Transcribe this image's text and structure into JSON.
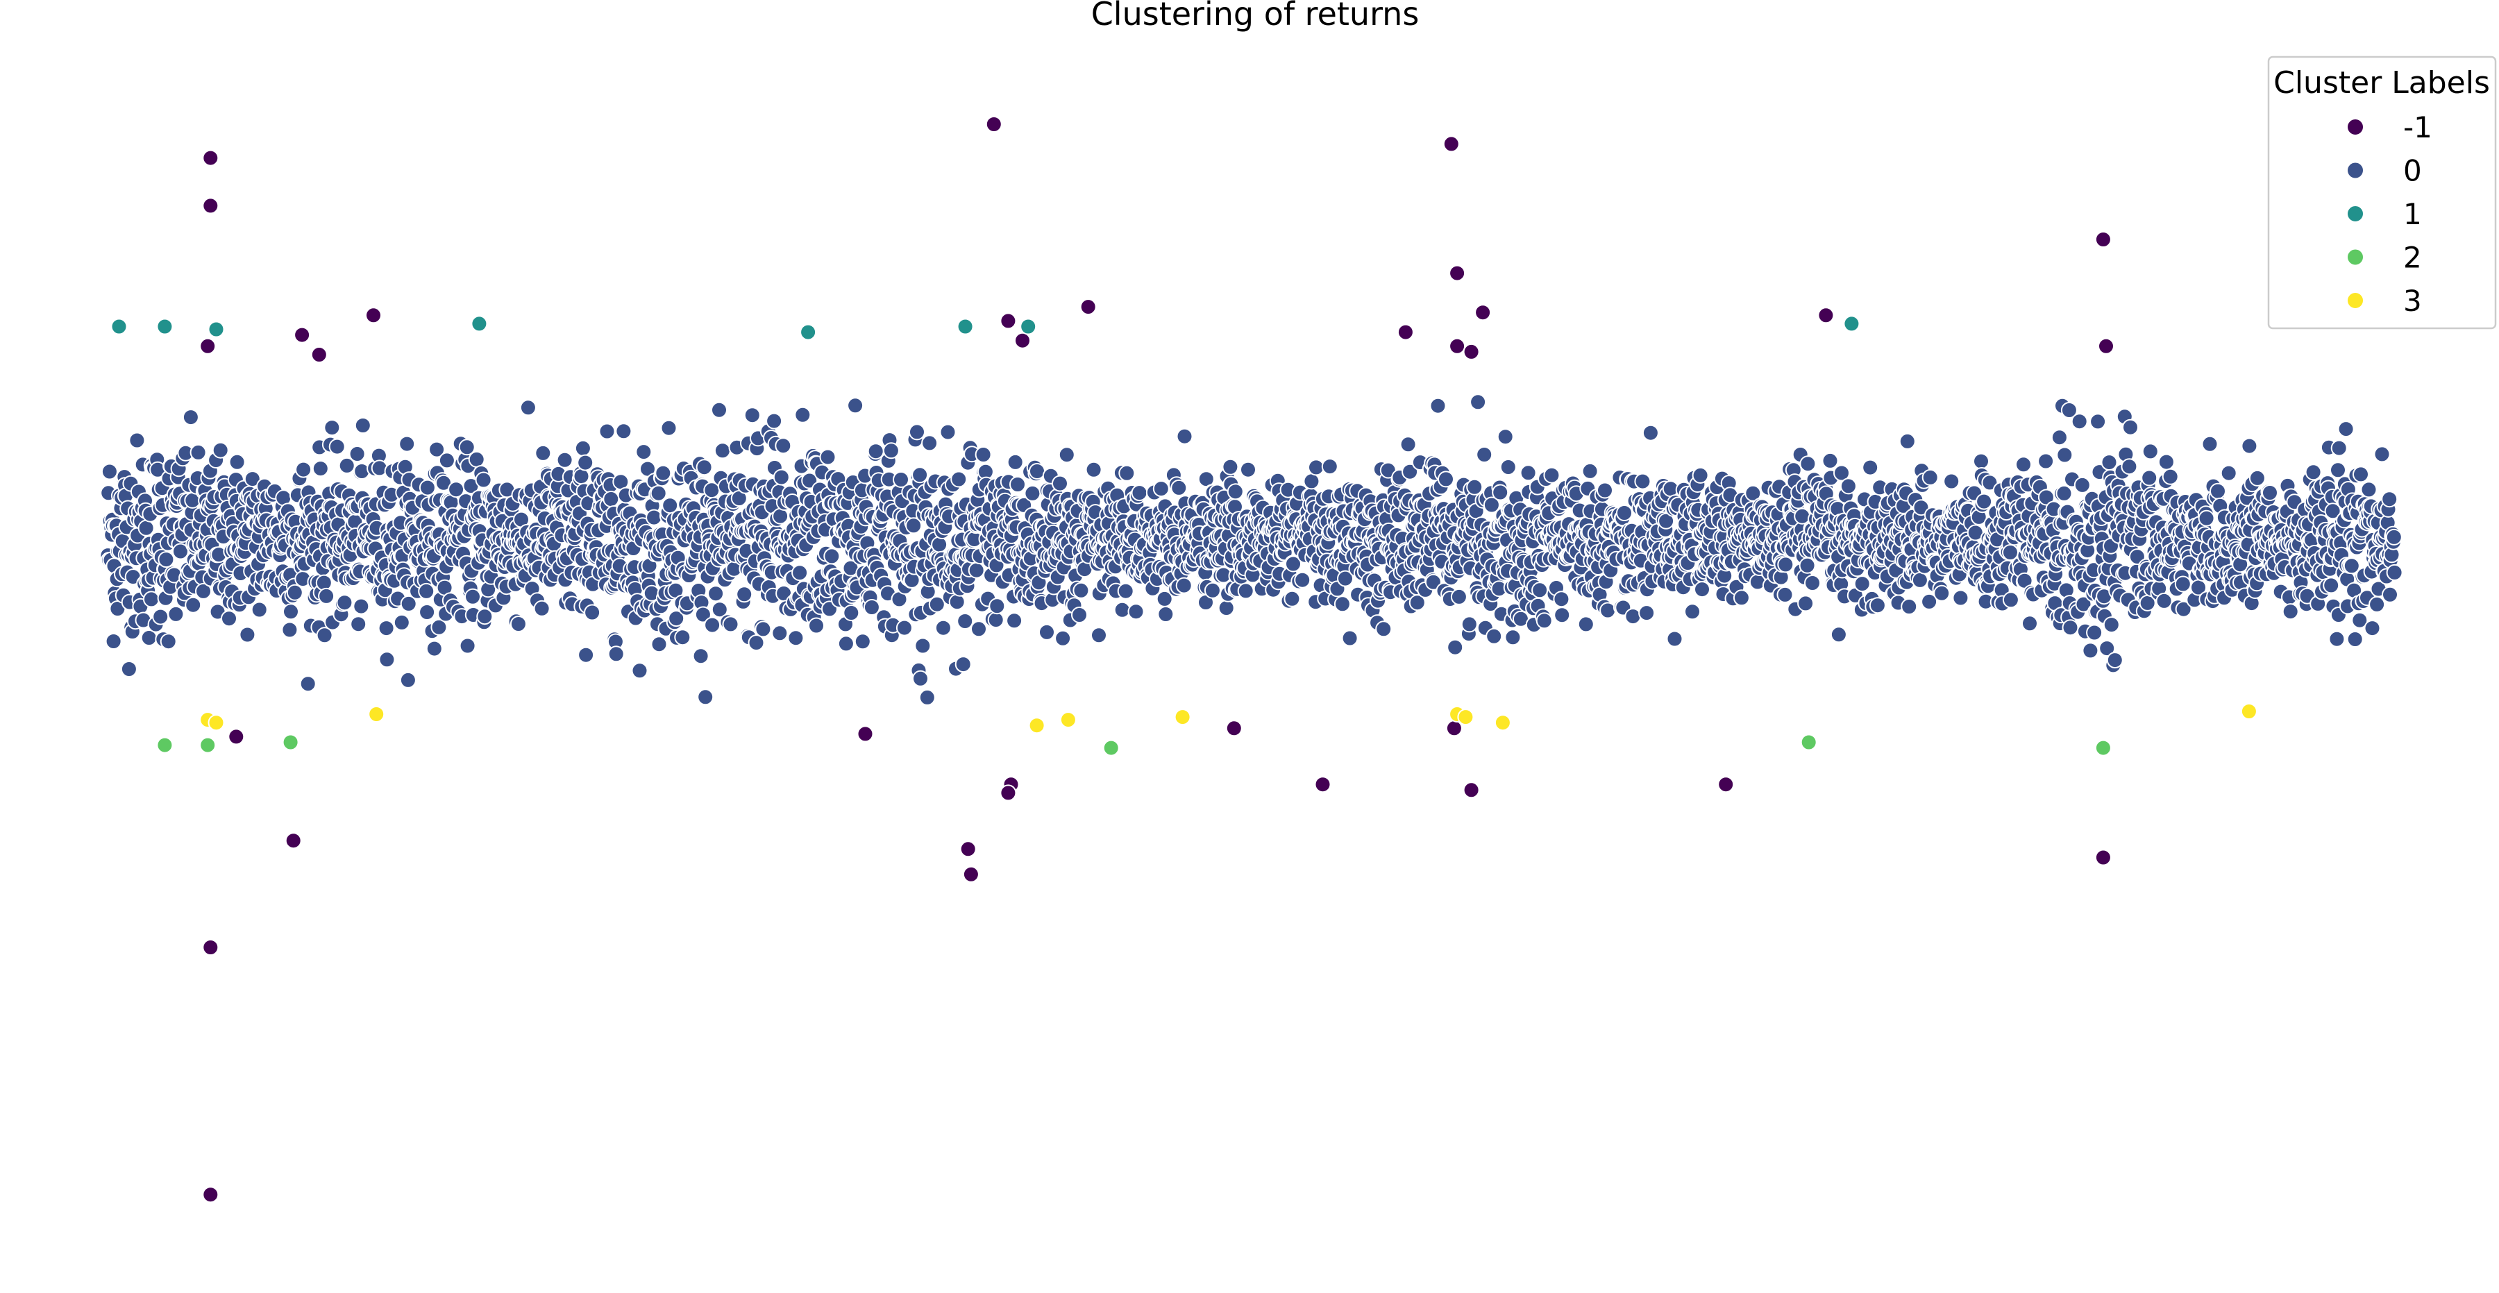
{
  "chart_data": {
    "type": "scatter",
    "title": "Clustering of returns",
    "xlabel": "",
    "ylabel": "",
    "axes_visible": false,
    "grid": false,
    "x_index_range": [
      0,
      4000
    ],
    "y_range": [
      -0.25,
      0.17
    ],
    "legend": {
      "title": "Cluster Labels",
      "placement": "top-right",
      "entries": [
        {
          "label": "-1",
          "color": "#440154"
        },
        {
          "label": "0",
          "color": "#3b528b"
        },
        {
          "label": "1",
          "color": "#21918c"
        },
        {
          "label": "2",
          "color": "#5ec962"
        },
        {
          "label": "3",
          "color": "#fde725"
        }
      ]
    },
    "bulk_cluster": {
      "label": "0",
      "color": "#3b528b",
      "point_count": 4000,
      "x_range": [
        0,
        4000
      ],
      "center": 0.0,
      "typical_amplitude": 0.028,
      "max_abs": 0.06
    },
    "series": [
      {
        "name": "-1",
        "color": "#440154",
        "points": [
          {
            "x": 180,
            "y": 0.136
          },
          {
            "x": 180,
            "y": 0.119
          },
          {
            "x": 175,
            "y": 0.069
          },
          {
            "x": 340,
            "y": 0.073
          },
          {
            "x": 370,
            "y": 0.066
          },
          {
            "x": 465,
            "y": 0.08
          },
          {
            "x": 225,
            "y": -0.07
          },
          {
            "x": 325,
            "y": -0.107
          },
          {
            "x": 180,
            "y": -0.145
          },
          {
            "x": 180,
            "y": -0.233
          },
          {
            "x": 1550,
            "y": 0.148
          },
          {
            "x": 1575,
            "y": 0.078
          },
          {
            "x": 1600,
            "y": 0.071
          },
          {
            "x": 1715,
            "y": 0.083
          },
          {
            "x": 1325,
            "y": -0.069
          },
          {
            "x": 1580,
            "y": -0.087
          },
          {
            "x": 1575,
            "y": -0.09
          },
          {
            "x": 1505,
            "y": -0.11
          },
          {
            "x": 1510,
            "y": -0.119
          },
          {
            "x": 1970,
            "y": -0.067
          },
          {
            "x": 2125,
            "y": -0.087
          },
          {
            "x": 2350,
            "y": 0.141
          },
          {
            "x": 2360,
            "y": 0.095
          },
          {
            "x": 2405,
            "y": 0.081
          },
          {
            "x": 2360,
            "y": 0.069
          },
          {
            "x": 2385,
            "y": 0.067
          },
          {
            "x": 2270,
            "y": 0.074
          },
          {
            "x": 2355,
            "y": -0.067
          },
          {
            "x": 2385,
            "y": -0.089
          },
          {
            "x": 2830,
            "y": -0.087
          },
          {
            "x": 3005,
            "y": 0.08
          },
          {
            "x": 3490,
            "y": 0.107
          },
          {
            "x": 3495,
            "y": 0.069
          },
          {
            "x": 3490,
            "y": -0.113
          }
        ]
      },
      {
        "name": "1",
        "color": "#21918c",
        "points": [
          {
            "x": 20,
            "y": 0.076
          },
          {
            "x": 100,
            "y": 0.076
          },
          {
            "x": 190,
            "y": 0.075
          },
          {
            "x": 650,
            "y": 0.077
          },
          {
            "x": 1225,
            "y": 0.074
          },
          {
            "x": 1500,
            "y": 0.076
          },
          {
            "x": 1610,
            "y": 0.076
          },
          {
            "x": 3050,
            "y": 0.077
          }
        ]
      },
      {
        "name": "2",
        "color": "#5ec962",
        "points": [
          {
            "x": 100,
            "y": -0.073
          },
          {
            "x": 175,
            "y": -0.073
          },
          {
            "x": 320,
            "y": -0.072
          },
          {
            "x": 1755,
            "y": -0.074
          },
          {
            "x": 2975,
            "y": -0.072
          },
          {
            "x": 3490,
            "y": -0.074
          }
        ]
      },
      {
        "name": "3",
        "color": "#fde725",
        "points": [
          {
            "x": 175,
            "y": -0.064
          },
          {
            "x": 190,
            "y": -0.065
          },
          {
            "x": 470,
            "y": -0.062
          },
          {
            "x": 1625,
            "y": -0.066
          },
          {
            "x": 1680,
            "y": -0.064
          },
          {
            "x": 1880,
            "y": -0.063
          },
          {
            "x": 2360,
            "y": -0.062
          },
          {
            "x": 2375,
            "y": -0.063
          },
          {
            "x": 2440,
            "y": -0.065
          },
          {
            "x": 3745,
            "y": -0.061
          }
        ]
      }
    ]
  }
}
